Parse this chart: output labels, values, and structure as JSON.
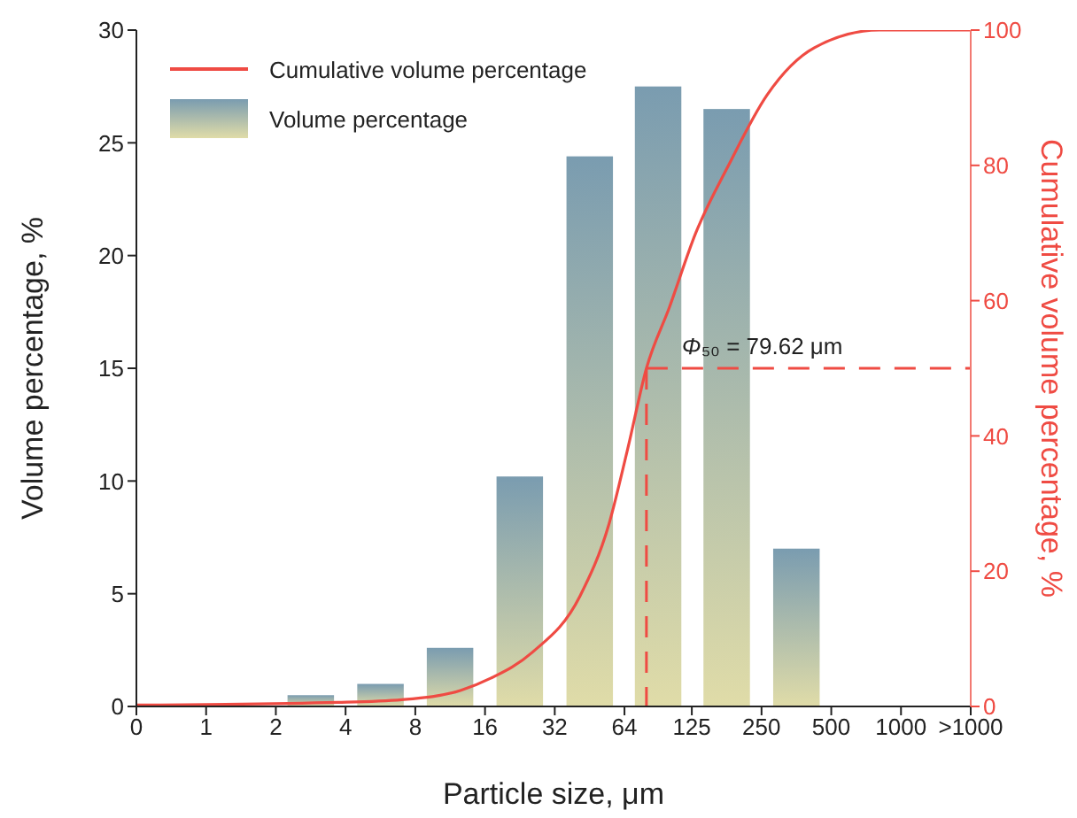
{
  "chart_data": {
    "type": "bar",
    "xlabel": "Particle size, μm",
    "ylabel": "Volume percentage, %",
    "y2label": "Cumulative volume percentage, %",
    "log": "x",
    "xlim": [
      0.5,
      2000
    ],
    "xticks": [
      {
        "value": 0.5,
        "label": "0"
      },
      1,
      2,
      4,
      8,
      16,
      32,
      64,
      125,
      250,
      500,
      1000,
      {
        "value": 2000,
        "label": ">1000"
      }
    ],
    "ylim": [
      0,
      30
    ],
    "yticks": [
      0,
      5,
      10,
      15,
      20,
      25,
      30
    ],
    "y2lim": [
      0,
      100
    ],
    "y2ticks": [
      0,
      20,
      40,
      60,
      80,
      100
    ],
    "legend": "top left",
    "series": [
      {
        "name": "Cumulative volume percentage",
        "type": "line",
        "axis": "y2",
        "color": "#ef4b43",
        "x": [
          0.5,
          3.7,
          7,
          12.6,
          17,
          25.6,
          41.1,
          54.9,
          66,
          79.62,
          100,
          130,
          180,
          264,
          423,
          806,
          2000
        ],
        "values": [
          0.2,
          0.6,
          1.0,
          2.4,
          4.2,
          8,
          16.3,
          27,
          38,
          50,
          59,
          70,
          80,
          90.4,
          97.4,
          100,
          100
        ]
      },
      {
        "name": "Volume percentage",
        "color": "#7a9cb0",
        "x": [
          2.83,
          5.66,
          11.3,
          22.6,
          45.3,
          89.4,
          176.8,
          353.6
        ],
        "values": [
          0.5,
          1.0,
          2.6,
          10.2,
          24.4,
          27.5,
          26.5,
          7.0
        ]
      }
    ],
    "ref_lines": [
      {
        "axis": "x",
        "value": 79.62,
        "label": "Φ₅₀ = 79.62 μm",
        "color": "#ef4b43",
        "line_style": "dashed"
      },
      {
        "axis": "y2",
        "value": 50,
        "color": "#ef4b43",
        "line_style": "dashed"
      }
    ]
  }
}
